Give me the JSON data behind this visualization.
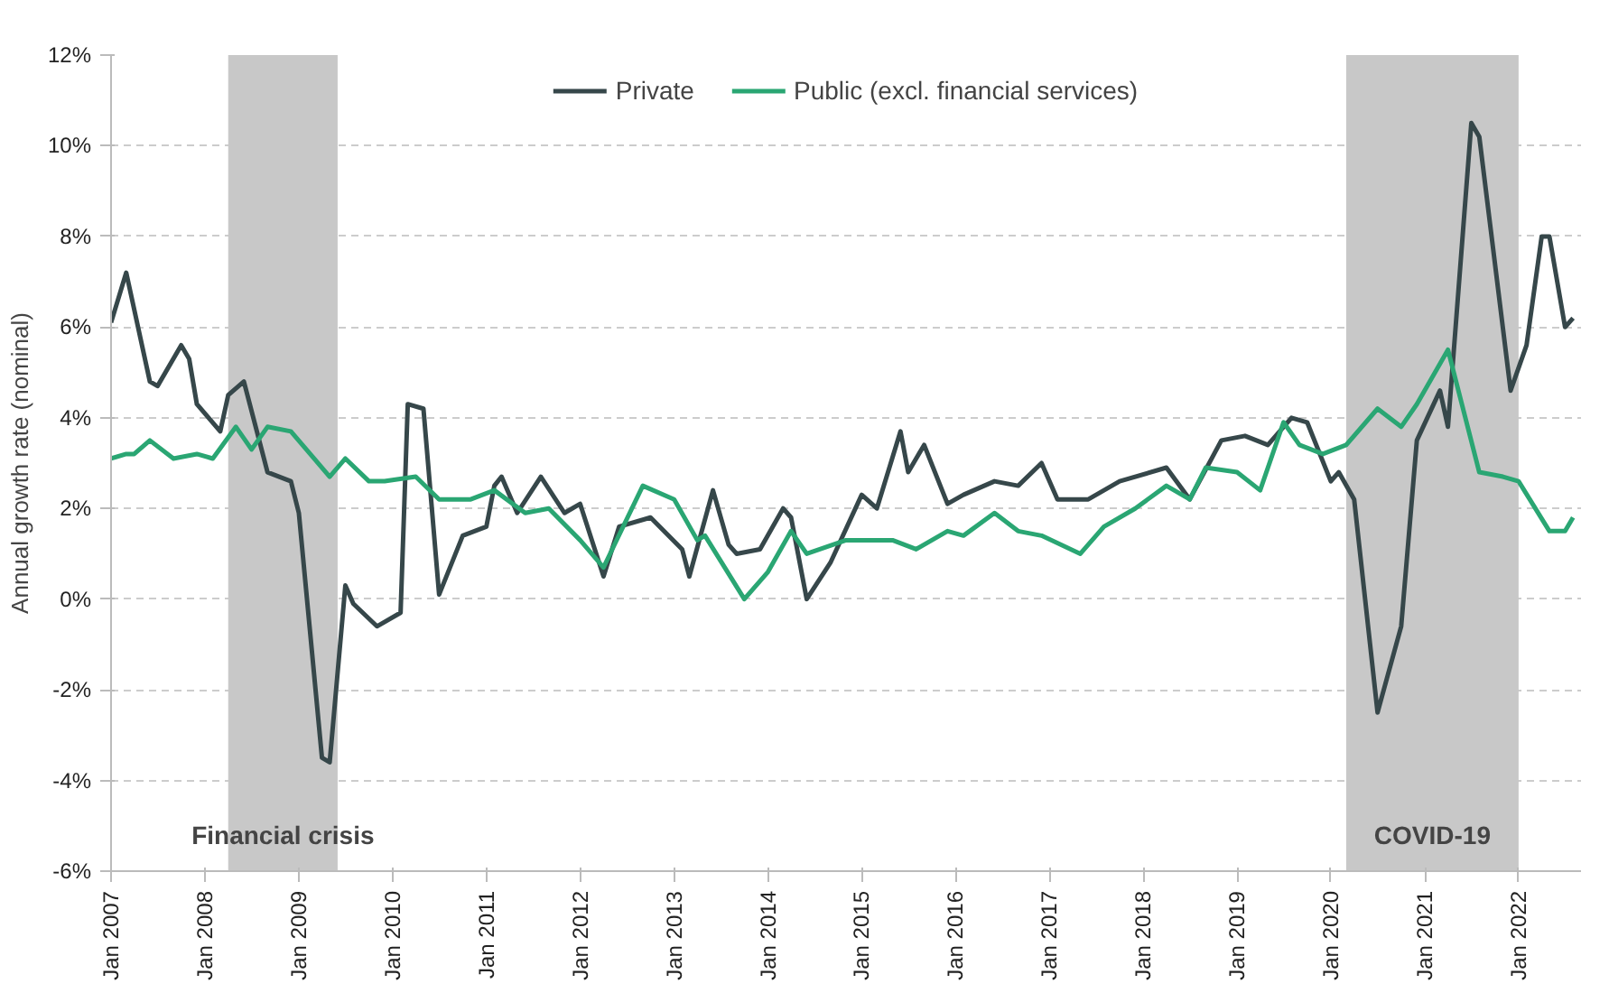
{
  "chart_data": {
    "type": "line",
    "ylabel": "Annual growth rate (nominal)",
    "xlim": [
      "2007-01",
      "2022-09"
    ],
    "xticks": [
      {
        "value": "2007-01",
        "label": "Jan 2007"
      },
      {
        "value": "2008-01",
        "label": "Jan 2008"
      },
      {
        "value": "2009-01",
        "label": "Jan 2009"
      },
      {
        "value": "2010-01",
        "label": "Jan 2010"
      },
      {
        "value": "2011-01",
        "label": "Jan 2011"
      },
      {
        "value": "2012-01",
        "label": "Jan 2012"
      },
      {
        "value": "2013-01",
        "label": "Jan 2013"
      },
      {
        "value": "2014-01",
        "label": "Jan 2014"
      },
      {
        "value": "2015-01",
        "label": "Jan 2015"
      },
      {
        "value": "2016-01",
        "label": "Jan 2016"
      },
      {
        "value": "2017-01",
        "label": "Jan 2017"
      },
      {
        "value": "2018-01",
        "label": "Jan 2018"
      },
      {
        "value": "2019-01",
        "label": "Jan 2019"
      },
      {
        "value": "2020-01",
        "label": "Jan 2020"
      },
      {
        "value": "2021-01",
        "label": "Jan 2021"
      },
      {
        "value": "2022-01",
        "label": "Jan 2022"
      }
    ],
    "ylim": [
      -6,
      12
    ],
    "yticks": [
      {
        "value": -6,
        "label": "-6%"
      },
      {
        "value": -4,
        "label": "-4%"
      },
      {
        "value": -2,
        "label": "-2%"
      },
      {
        "value": 0,
        "label": "0%"
      },
      {
        "value": 2,
        "label": "2%"
      },
      {
        "value": 4,
        "label": "4%"
      },
      {
        "value": 6,
        "label": "6%"
      },
      {
        "value": 8,
        "label": "8%"
      },
      {
        "value": 10,
        "label": "10%"
      },
      {
        "value": 12,
        "label": "12%"
      }
    ],
    "grid": "y",
    "legend": "top",
    "line_style": "solid",
    "bands": [
      {
        "axis": "x",
        "from": "2008-04",
        "to": "2009-06",
        "label": "Financial crisis",
        "color": "#c8c8c8"
      },
      {
        "axis": "x",
        "from": "2020-03",
        "to": "2022-01",
        "label": "COVID-19",
        "color": "#c8c8c8"
      }
    ],
    "series": [
      {
        "name": "Private",
        "color": "#36474a",
        "x": [
          "2007-01",
          "2007-03",
          "2007-06",
          "2007-07",
          "2007-10",
          "2007-11",
          "2007-12",
          "2008-03",
          "2008-04",
          "2008-06",
          "2008-09",
          "2008-12",
          "2009-01",
          "2009-04",
          "2009-05",
          "2009-07",
          "2009-08",
          "2009-11",
          "2010-02",
          "2010-03",
          "2010-05",
          "2010-07",
          "2010-10",
          "2011-01",
          "2011-02",
          "2011-03",
          "2011-05",
          "2011-08",
          "2011-11",
          "2012-01",
          "2012-04",
          "2012-06",
          "2012-10",
          "2013-02",
          "2013-03",
          "2013-06",
          "2013-08",
          "2013-09",
          "2013-12",
          "2014-03",
          "2014-04",
          "2014-06",
          "2014-09",
          "2015-01",
          "2015-03",
          "2015-06",
          "2015-07",
          "2015-09",
          "2015-12",
          "2016-02",
          "2016-06",
          "2016-09",
          "2016-12",
          "2017-02",
          "2017-06",
          "2017-10",
          "2018-04",
          "2018-07",
          "2018-11",
          "2019-02",
          "2019-05",
          "2019-08",
          "2019-10",
          "2020-01",
          "2020-02",
          "2020-04",
          "2020-07",
          "2020-10",
          "2020-12",
          "2021-03",
          "2021-04",
          "2021-07",
          "2021-08",
          "2021-12",
          "2022-02",
          "2022-04",
          "2022-05",
          "2022-07",
          "2022-08"
        ],
        "values": [
          6.1,
          7.2,
          4.8,
          4.7,
          5.6,
          5.3,
          4.3,
          3.7,
          4.5,
          4.8,
          2.8,
          2.6,
          1.9,
          -3.5,
          -3.6,
          0.3,
          -0.1,
          -0.6,
          -0.3,
          4.3,
          4.2,
          0.1,
          1.4,
          1.6,
          2.5,
          2.7,
          1.9,
          2.7,
          1.9,
          2.1,
          0.5,
          1.6,
          1.8,
          1.1,
          0.5,
          2.4,
          1.2,
          1.0,
          1.1,
          2.0,
          1.8,
          0.0,
          0.8,
          2.3,
          2.0,
          3.7,
          2.8,
          3.4,
          2.1,
          2.3,
          2.6,
          2.5,
          3.0,
          2.2,
          2.2,
          2.6,
          2.9,
          2.2,
          3.5,
          3.6,
          3.4,
          4.0,
          3.9,
          2.6,
          2.8,
          2.2,
          -2.5,
          -0.6,
          3.5,
          4.6,
          3.8,
          10.5,
          10.2,
          4.6,
          5.6,
          8.0,
          8.0,
          6.0,
          6.2
        ]
      },
      {
        "name": "Public (excl. financial services)",
        "color": "#2aa673",
        "x": [
          "2007-01",
          "2007-03",
          "2007-04",
          "2007-06",
          "2007-09",
          "2007-12",
          "2008-02",
          "2008-05",
          "2008-07",
          "2008-09",
          "2008-12",
          "2009-05",
          "2009-07",
          "2009-10",
          "2009-12",
          "2010-04",
          "2010-07",
          "2010-11",
          "2011-02",
          "2011-06",
          "2011-09",
          "2012-01",
          "2012-04",
          "2012-09",
          "2013-01",
          "2013-04",
          "2013-05",
          "2013-10",
          "2014-01",
          "2014-04",
          "2014-06",
          "2014-11",
          "2015-05",
          "2015-08",
          "2015-12",
          "2016-02",
          "2016-06",
          "2016-09",
          "2016-12",
          "2017-05",
          "2017-08",
          "2017-12",
          "2018-04",
          "2018-07",
          "2018-09",
          "2019-01",
          "2019-04",
          "2019-07",
          "2019-09",
          "2019-12",
          "2020-03",
          "2020-07",
          "2020-10",
          "2020-12",
          "2021-04",
          "2021-08",
          "2021-11",
          "2022-01",
          "2022-05",
          "2022-07",
          "2022-08"
        ],
        "values": [
          3.1,
          3.2,
          3.2,
          3.5,
          3.1,
          3.2,
          3.1,
          3.8,
          3.3,
          3.8,
          3.7,
          2.7,
          3.1,
          2.6,
          2.6,
          2.7,
          2.2,
          2.2,
          2.4,
          1.9,
          2.0,
          1.3,
          0.7,
          2.5,
          2.2,
          1.3,
          1.4,
          0.0,
          0.6,
          1.5,
          1.0,
          1.3,
          1.3,
          1.1,
          1.5,
          1.4,
          1.9,
          1.5,
          1.4,
          1.0,
          1.6,
          2.0,
          2.5,
          2.2,
          2.9,
          2.8,
          2.4,
          3.9,
          3.4,
          3.2,
          3.4,
          4.2,
          3.8,
          4.3,
          5.5,
          2.8,
          2.7,
          2.6,
          1.5,
          1.5,
          1.8
        ]
      }
    ]
  }
}
